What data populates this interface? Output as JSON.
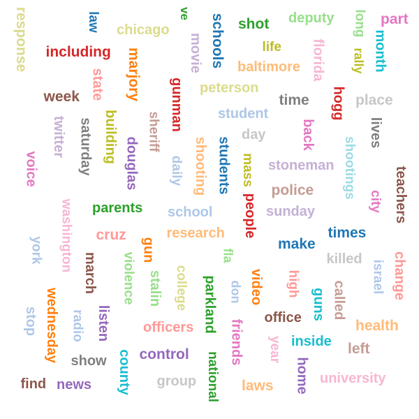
{
  "palette": {
    "brown": "#8c564b",
    "blue": "#1f77b4",
    "lightblue": "#aec7e8",
    "green": "#2ca02c",
    "lightgreen": "#98df8a",
    "olive": "#bcbd22",
    "khaki": "#dbdb8d",
    "red": "#d62728",
    "salmon": "#ff9896",
    "orange": "#ff7f0e",
    "peach": "#ffbb78",
    "purple": "#9467bd",
    "lavender": "#c5b0d5",
    "pink": "#e377c2",
    "lightpink": "#f7b6d2",
    "gray": "#7f7f7f",
    "lightgray": "#c7c7c7",
    "cyan": "#17becf",
    "lightcyan": "#9edae5",
    "rosybrown": "#c49c94"
  },
  "words": [
    {
      "text": "response",
      "color": "#dbdb8d"
    },
    {
      "text": "law",
      "color": "#1f77b4"
    },
    {
      "text": "chicago",
      "color": "#dbdb8d"
    },
    {
      "text": "ve",
      "color": "#2ca02c"
    },
    {
      "text": "schools",
      "color": "#1f77b4"
    },
    {
      "text": "shot",
      "color": "#2ca02c"
    },
    {
      "text": "deputy",
      "color": "#98df8a"
    },
    {
      "text": "long",
      "color": "#98df8a"
    },
    {
      "text": "part",
      "color": "#e377c2"
    },
    {
      "text": "month",
      "color": "#17becf"
    },
    {
      "text": "movie",
      "color": "#c5b0d5"
    },
    {
      "text": "florida",
      "color": "#f7b6d2"
    },
    {
      "text": "rally",
      "color": "#bcbd22"
    },
    {
      "text": "including",
      "color": "#d62728"
    },
    {
      "text": "marjory",
      "color": "#ff7f0e"
    },
    {
      "text": "life",
      "color": "#bcbd22"
    },
    {
      "text": "baltimore",
      "color": "#ffbb78"
    },
    {
      "text": "state",
      "color": "#ff9896"
    },
    {
      "text": "gunman",
      "color": "#d62728"
    },
    {
      "text": "peterson",
      "color": "#dbdb8d"
    },
    {
      "text": "week",
      "color": "#8c564b"
    },
    {
      "text": "time",
      "color": "#7f7f7f"
    },
    {
      "text": "hogg",
      "color": "#d62728"
    },
    {
      "text": "place",
      "color": "#c7c7c7"
    },
    {
      "text": "sheriff",
      "color": "#c49c94"
    },
    {
      "text": "student",
      "color": "#aec7e8"
    },
    {
      "text": "twitter",
      "color": "#c5b0d5"
    },
    {
      "text": "saturday",
      "color": "#7f7f7f"
    },
    {
      "text": "building",
      "color": "#bcbd22"
    },
    {
      "text": "back",
      "color": "#e377c2"
    },
    {
      "text": "lives",
      "color": "#7f7f7f"
    },
    {
      "text": "day",
      "color": "#c7c7c7"
    },
    {
      "text": "douglas",
      "color": "#9467bd"
    },
    {
      "text": "shooting",
      "color": "#ffbb78"
    },
    {
      "text": "students",
      "color": "#1f77b4"
    },
    {
      "text": "shootings",
      "color": "#9edae5"
    },
    {
      "text": "voice",
      "color": "#e377c2"
    },
    {
      "text": "daily",
      "color": "#aec7e8"
    },
    {
      "text": "mass",
      "color": "#bcbd22"
    },
    {
      "text": "stoneman",
      "color": "#c5b0d5"
    },
    {
      "text": "teachers",
      "color": "#8c564b"
    },
    {
      "text": "police",
      "color": "#c49c94"
    },
    {
      "text": "city",
      "color": "#e377c2"
    },
    {
      "text": "washington",
      "color": "#f7b6d2"
    },
    {
      "text": "parents",
      "color": "#2ca02c"
    },
    {
      "text": "sunday",
      "color": "#c5b0d5"
    },
    {
      "text": "people",
      "color": "#d62728"
    },
    {
      "text": "school",
      "color": "#aec7e8"
    },
    {
      "text": "cruz",
      "color": "#ff9896"
    },
    {
      "text": "research",
      "color": "#ffbb78"
    },
    {
      "text": "times",
      "color": "#1f77b4"
    },
    {
      "text": "york",
      "color": "#aec7e8"
    },
    {
      "text": "make",
      "color": "#1f77b4"
    },
    {
      "text": "gun",
      "color": "#ff7f0e"
    },
    {
      "text": "killed",
      "color": "#c7c7c7"
    },
    {
      "text": "change",
      "color": "#ff9896"
    },
    {
      "text": "march",
      "color": "#8c564b"
    },
    {
      "text": "violence",
      "color": "#98df8a"
    },
    {
      "text": "fla",
      "color": "#98df8a"
    },
    {
      "text": "israel",
      "color": "#aec7e8"
    },
    {
      "text": "stalin",
      "color": "#98df8a"
    },
    {
      "text": "college",
      "color": "#dbdb8d"
    },
    {
      "text": "parkland",
      "color": "#2ca02c"
    },
    {
      "text": "don",
      "color": "#aec7e8"
    },
    {
      "text": "video",
      "color": "#ff7f0e"
    },
    {
      "text": "high",
      "color": "#ff9896"
    },
    {
      "text": "guns",
      "color": "#17becf"
    },
    {
      "text": "called",
      "color": "#c49c94"
    },
    {
      "text": "stop",
      "color": "#aec7e8"
    },
    {
      "text": "wednesday",
      "color": "#ff7f0e"
    },
    {
      "text": "radio",
      "color": "#aec7e8"
    },
    {
      "text": "listen",
      "color": "#9467bd"
    },
    {
      "text": "officers",
      "color": "#ff9896"
    },
    {
      "text": "office",
      "color": "#8c564b"
    },
    {
      "text": "health",
      "color": "#ffbb78"
    },
    {
      "text": "friends",
      "color": "#e377c2"
    },
    {
      "text": "inside",
      "color": "#17becf"
    },
    {
      "text": "year",
      "color": "#f7b6d2"
    },
    {
      "text": "left",
      "color": "#c49c94"
    },
    {
      "text": "show",
      "color": "#7f7f7f"
    },
    {
      "text": "county",
      "color": "#17becf"
    },
    {
      "text": "control",
      "color": "#9467bd"
    },
    {
      "text": "national",
      "color": "#2ca02c"
    },
    {
      "text": "home",
      "color": "#9467bd"
    },
    {
      "text": "university",
      "color": "#f7b6d2"
    },
    {
      "text": "find",
      "color": "#8c564b"
    },
    {
      "text": "news",
      "color": "#9467bd"
    },
    {
      "text": "group",
      "color": "#c7c7c7"
    },
    {
      "text": "laws",
      "color": "#ffbb78"
    }
  ]
}
